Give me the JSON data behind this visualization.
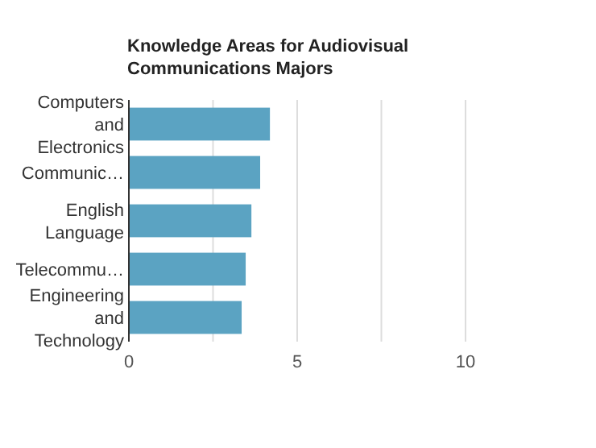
{
  "chart_data": {
    "type": "bar",
    "orientation": "horizontal",
    "title": "Knowledge Areas for Audiovisual Communications Majors",
    "categories": [
      "Computers and Electronics",
      "Communic…",
      "English Language",
      "Telecommu…",
      "Engineering and Technology"
    ],
    "values": [
      4.19,
      3.9,
      3.64,
      3.47,
      3.35
    ],
    "color": "#5ba3c2",
    "xlim": [
      0,
      10
    ],
    "xticks": [
      0,
      {
        "value": 2.5,
        "label": null
      },
      5,
      {
        "value": 7.5,
        "label": null
      },
      10
    ],
    "grid": "x"
  }
}
